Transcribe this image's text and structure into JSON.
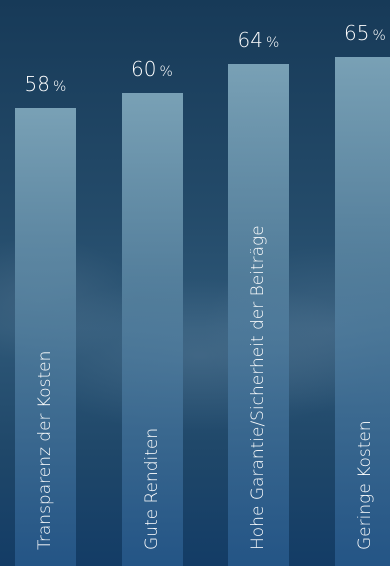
{
  "chart_data": {
    "type": "bar",
    "unit": "%",
    "categories": [
      "Transparenz der Kosten",
      "Gute Renditen",
      "Hohe Garantie/Sicherheit der Beiträge",
      "Geringe Kosten"
    ],
    "values": [
      58,
      60,
      64,
      65
    ],
    "colors": {
      "bar": "#6f9bb8",
      "text": "#ffffff",
      "background": "#1f4769"
    }
  }
}
